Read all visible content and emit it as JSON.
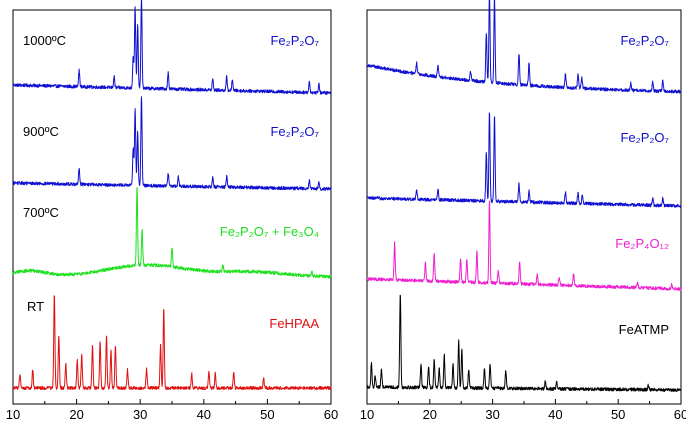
{
  "chart_data": [
    {
      "type": "line",
      "panel": "left",
      "title": "",
      "xlabel": "",
      "ylabel": "",
      "xlim": [
        10,
        60
      ],
      "xticks": [
        10,
        20,
        30,
        40,
        50,
        60
      ],
      "grid": false,
      "series": [
        {
          "name": "Fe2P2O7 (1000°C)",
          "temperature_label": "1000ºC",
          "phase_label": "Fe₂P₂O₇",
          "color": "#1010d0",
          "peaks": [
            [
              20.4,
              0.18
            ],
            [
              25.9,
              0.12
            ],
            [
              28.9,
              0.35
            ],
            [
              29.2,
              0.9
            ],
            [
              29.6,
              0.7
            ],
            [
              30.2,
              1.0
            ],
            [
              34.4,
              0.18
            ],
            [
              41.4,
              0.12
            ],
            [
              43.6,
              0.15
            ],
            [
              44.5,
              0.12
            ],
            [
              56.6,
              0.12
            ],
            [
              58.1,
              0.1
            ]
          ]
        },
        {
          "name": "Fe2P2O7 (900°C)",
          "temperature_label": "900ºC",
          "phase_label": "Fe₂P₂O₇",
          "color": "#1010d0",
          "peaks": [
            [
              20.4,
              0.18
            ],
            [
              28.9,
              0.4
            ],
            [
              29.2,
              0.85
            ],
            [
              29.6,
              0.6
            ],
            [
              30.2,
              1.0
            ],
            [
              34.4,
              0.15
            ],
            [
              36.0,
              0.1
            ],
            [
              41.4,
              0.1
            ],
            [
              43.6,
              0.12
            ],
            [
              56.6,
              0.1
            ],
            [
              58.1,
              0.08
            ]
          ]
        },
        {
          "name": "Fe2P2O7 + Fe3O4 (700°C)",
          "temperature_label": "700ºC",
          "phase_label": "Fe₂P₂O₇ + Fe₃O₄",
          "color": "#20e020",
          "peaks": [
            [
              29.5,
              1.0
            ],
            [
              30.3,
              0.45
            ],
            [
              35.0,
              0.25
            ],
            [
              43.0,
              0.08
            ],
            [
              57.0,
              0.06
            ]
          ]
        },
        {
          "name": "FeHPAA (RT)",
          "temperature_label": "RT",
          "phase_label": "FeHPAA",
          "color": "#e01010",
          "peaks": [
            [
              11.1,
              0.15
            ],
            [
              13.1,
              0.2
            ],
            [
              16.5,
              1.0
            ],
            [
              17.2,
              0.55
            ],
            [
              18.3,
              0.25
            ],
            [
              20.1,
              0.3
            ],
            [
              20.8,
              0.35
            ],
            [
              22.5,
              0.45
            ],
            [
              23.7,
              0.5
            ],
            [
              24.7,
              0.55
            ],
            [
              25.4,
              0.4
            ],
            [
              26.1,
              0.45
            ],
            [
              28.0,
              0.2
            ],
            [
              31.0,
              0.2
            ],
            [
              33.2,
              0.45
            ],
            [
              33.7,
              0.85
            ],
            [
              38.1,
              0.15
            ],
            [
              40.8,
              0.18
            ],
            [
              41.8,
              0.15
            ],
            [
              44.7,
              0.15
            ],
            [
              49.4,
              0.1
            ]
          ]
        }
      ]
    },
    {
      "type": "line",
      "panel": "right",
      "title": "",
      "xlabel": "",
      "ylabel": "",
      "xlim": [
        10,
        60
      ],
      "xticks": [
        10,
        20,
        30,
        40,
        50,
        60
      ],
      "grid": false,
      "series": [
        {
          "name": "Fe2P2O7 (top)",
          "phase_label": "Fe₂P₂O₇",
          "color": "#1010d0",
          "peaks": [
            [
              17.9,
              0.12
            ],
            [
              21.3,
              0.12
            ],
            [
              26.5,
              0.1
            ],
            [
              29.0,
              0.55
            ],
            [
              29.5,
              1.0
            ],
            [
              30.3,
              0.95
            ],
            [
              34.2,
              0.35
            ],
            [
              35.8,
              0.25
            ],
            [
              41.6,
              0.15
            ],
            [
              43.6,
              0.15
            ],
            [
              44.2,
              0.12
            ],
            [
              52.0,
              0.08
            ],
            [
              55.5,
              0.1
            ],
            [
              57.1,
              0.12
            ]
          ]
        },
        {
          "name": "Fe2P2O7 (second)",
          "phase_label": "Fe₂P₂O₇",
          "color": "#1010d0",
          "peaks": [
            [
              17.9,
              0.1
            ],
            [
              21.3,
              0.12
            ],
            [
              29.0,
              0.55
            ],
            [
              29.5,
              1.0
            ],
            [
              30.3,
              0.95
            ],
            [
              34.2,
              0.2
            ],
            [
              35.8,
              0.12
            ],
            [
              41.6,
              0.12
            ],
            [
              43.6,
              0.12
            ],
            [
              44.3,
              0.1
            ],
            [
              55.5,
              0.08
            ],
            [
              57.1,
              0.08
            ]
          ]
        },
        {
          "name": "Fe2P4O12",
          "phase_label": "Fe₂P₄O₁₂",
          "color": "#ee20d0",
          "peaks": [
            [
              14.4,
              0.45
            ],
            [
              19.3,
              0.22
            ],
            [
              20.7,
              0.35
            ],
            [
              24.9,
              0.28
            ],
            [
              25.9,
              0.28
            ],
            [
              27.5,
              0.38
            ],
            [
              29.5,
              1.0
            ],
            [
              30.9,
              0.15
            ],
            [
              34.3,
              0.28
            ],
            [
              37.1,
              0.12
            ],
            [
              40.6,
              0.1
            ],
            [
              42.9,
              0.15
            ],
            [
              53.1,
              0.06
            ],
            [
              58.5,
              0.05
            ]
          ]
        },
        {
          "name": "FeATMP",
          "phase_label": "FeATMP",
          "color": "#000000",
          "peaks": [
            [
              10.7,
              0.25
            ],
            [
              11.3,
              0.12
            ],
            [
              12.3,
              0.2
            ],
            [
              15.3,
              1.0
            ],
            [
              18.6,
              0.25
            ],
            [
              19.8,
              0.22
            ],
            [
              20.7,
              0.3
            ],
            [
              21.5,
              0.2
            ],
            [
              22.3,
              0.35
            ],
            [
              23.7,
              0.25
            ],
            [
              24.6,
              0.5
            ],
            [
              25.1,
              0.4
            ],
            [
              26.2,
              0.2
            ],
            [
              28.7,
              0.2
            ],
            [
              29.6,
              0.25
            ],
            [
              32.1,
              0.18
            ],
            [
              38.4,
              0.08
            ],
            [
              40.2,
              0.08
            ],
            [
              54.8,
              0.05
            ]
          ]
        }
      ]
    }
  ]
}
